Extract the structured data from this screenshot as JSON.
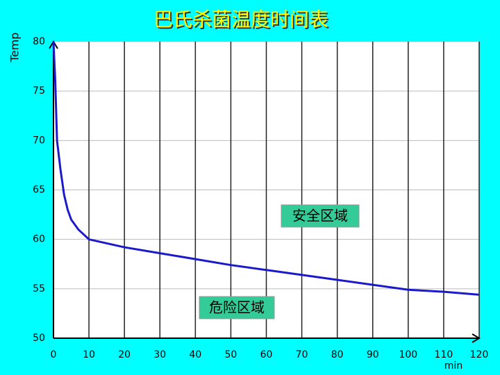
{
  "chart_data": {
    "type": "line",
    "title": "巴氏杀菌温度时间表",
    "y_label": "Temp",
    "x_label": "min",
    "x": [
      0,
      0.5,
      1,
      2,
      3,
      4,
      5,
      7,
      10,
      20,
      30,
      40,
      50,
      60,
      70,
      80,
      90,
      100,
      110,
      120
    ],
    "values": [
      80,
      76,
      70,
      67,
      64.5,
      63,
      62,
      61,
      60,
      59.2,
      58.6,
      58,
      57.4,
      56.9,
      56.4,
      55.9,
      55.4,
      54.9,
      54.7,
      54.4
    ],
    "color": "#1a1acc",
    "xlim": [
      0,
      120
    ],
    "xticks": [
      0,
      10,
      20,
      30,
      40,
      50,
      60,
      70,
      80,
      90,
      100,
      110,
      120
    ],
    "ylim": [
      50,
      80
    ],
    "yticks": [
      50,
      55,
      60,
      65,
      70,
      75,
      80
    ],
    "grid": true,
    "annotations": [
      {
        "text": "安全区域"
      },
      {
        "text": "危险区域"
      }
    ]
  }
}
